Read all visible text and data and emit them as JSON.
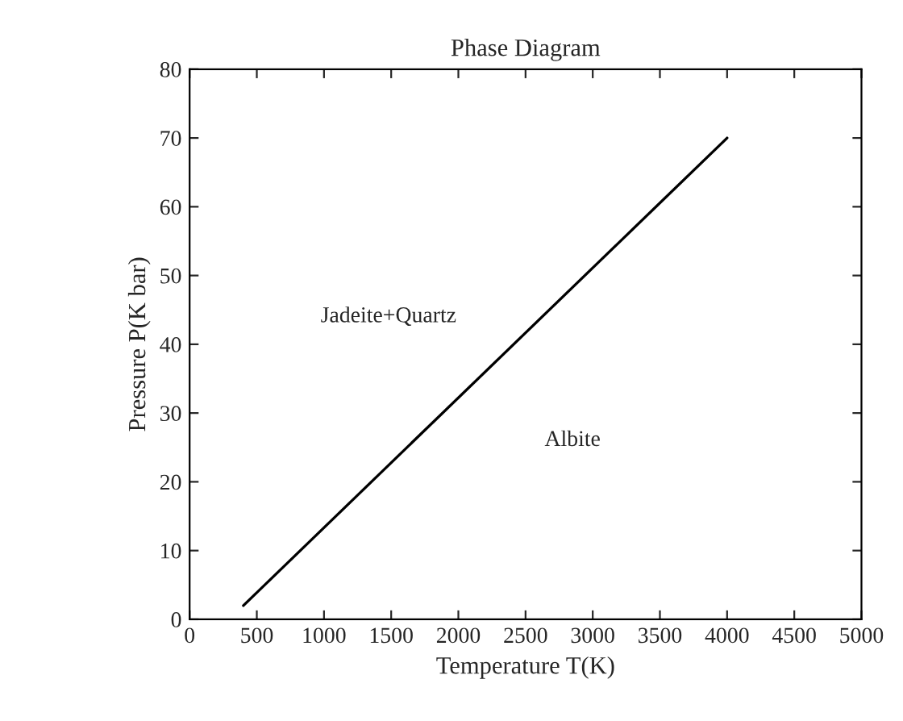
{
  "chart_data": {
    "type": "line",
    "title": "Phase Diagram",
    "xlabel": "Temperature T(K)",
    "ylabel": "Pressure P(K bar)",
    "x": [
      400,
      4000
    ],
    "series": [
      {
        "color": "#000000",
        "values": [
          2,
          70
        ]
      }
    ],
    "xlim": [
      0,
      5000
    ],
    "xticks": [
      0,
      500,
      1000,
      1500,
      2000,
      2500,
      3000,
      3500,
      4000,
      4500,
      5000
    ],
    "ylim": [
      0,
      80
    ],
    "yticks": [
      0,
      10,
      20,
      30,
      40,
      50,
      60,
      70,
      80
    ],
    "annotations": [
      "Jadeite+Quartz",
      "Albite"
    ],
    "grid": false
  }
}
